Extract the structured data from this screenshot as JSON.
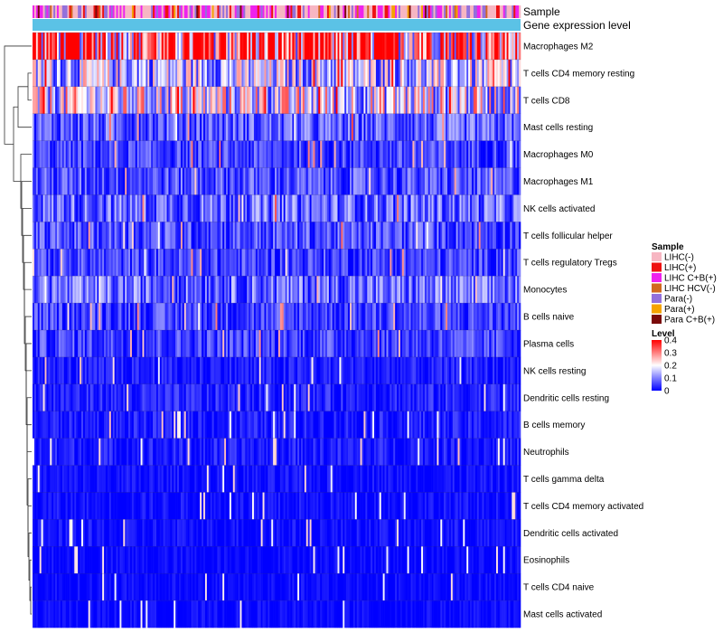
{
  "chart_data": {
    "type": "heatmap",
    "title": "",
    "columns_count": 280,
    "annotation_tracks": [
      {
        "name": "Sample",
        "label": "Sample"
      },
      {
        "name": "Gene expression level",
        "label": "Gene expression level",
        "color": "#5bc2e6"
      }
    ],
    "rows": [
      {
        "label": "Macrophages M2",
        "mean": 0.33
      },
      {
        "label": "T cells CD4 memory resting",
        "mean": 0.15
      },
      {
        "label": "T cells CD8",
        "mean": 0.18
      },
      {
        "label": "Mast cells resting",
        "mean": 0.07
      },
      {
        "label": "Macrophages M0",
        "mean": 0.05
      },
      {
        "label": "Macrophages M1",
        "mean": 0.06
      },
      {
        "label": "NK cells activated",
        "mean": 0.08
      },
      {
        "label": "T cells follicular helper",
        "mean": 0.06
      },
      {
        "label": "T cells regulatory  Tregs",
        "mean": 0.05
      },
      {
        "label": "Monocytes",
        "mean": 0.08
      },
      {
        "label": "B cells naive",
        "mean": 0.05
      },
      {
        "label": "Plasma cells",
        "mean": 0.05
      },
      {
        "label": "NK cells resting",
        "mean": 0.02
      },
      {
        "label": "Dendritic cells resting",
        "mean": 0.025
      },
      {
        "label": "B cells memory",
        "mean": 0.02
      },
      {
        "label": "Neutrophils",
        "mean": 0.02
      },
      {
        "label": "T cells gamma delta",
        "mean": 0.01
      },
      {
        "label": "T cells CD4 memory activated",
        "mean": 0.01
      },
      {
        "label": "Dendritic cells activated",
        "mean": 0.01
      },
      {
        "label": "Eosinophils",
        "mean": 0.005
      },
      {
        "label": "T cells CD4 naive",
        "mean": 0.005
      },
      {
        "label": "Mast cells activated",
        "mean": 0.005
      }
    ],
    "sample_legend": {
      "title": "Sample",
      "entries": [
        {
          "label": "LIHC(-)",
          "color": "#f7b6c2"
        },
        {
          "label": "LIHC(+)",
          "color": "#ee1111"
        },
        {
          "label": "LIHC C+B(+)",
          "color": "#ee22ee"
        },
        {
          "label": "LIHC HCV(-)",
          "color": "#d2691e"
        },
        {
          "label": "Para(-)",
          "color": "#9370db"
        },
        {
          "label": "Para(+)",
          "color": "#f5a300"
        },
        {
          "label": "Para C+B(+)",
          "color": "#7a0a0a"
        }
      ]
    },
    "level_legend": {
      "title": "Level",
      "ticks": [
        "0.4",
        "0.3",
        "0.2",
        "0.1",
        "0"
      ],
      "tick_values": [
        0.4,
        0.3,
        0.2,
        0.1,
        0
      ],
      "range": [
        0,
        0.4
      ],
      "colors": [
        "#0000ff",
        "#ffffff",
        "#ff0000"
      ]
    }
  }
}
